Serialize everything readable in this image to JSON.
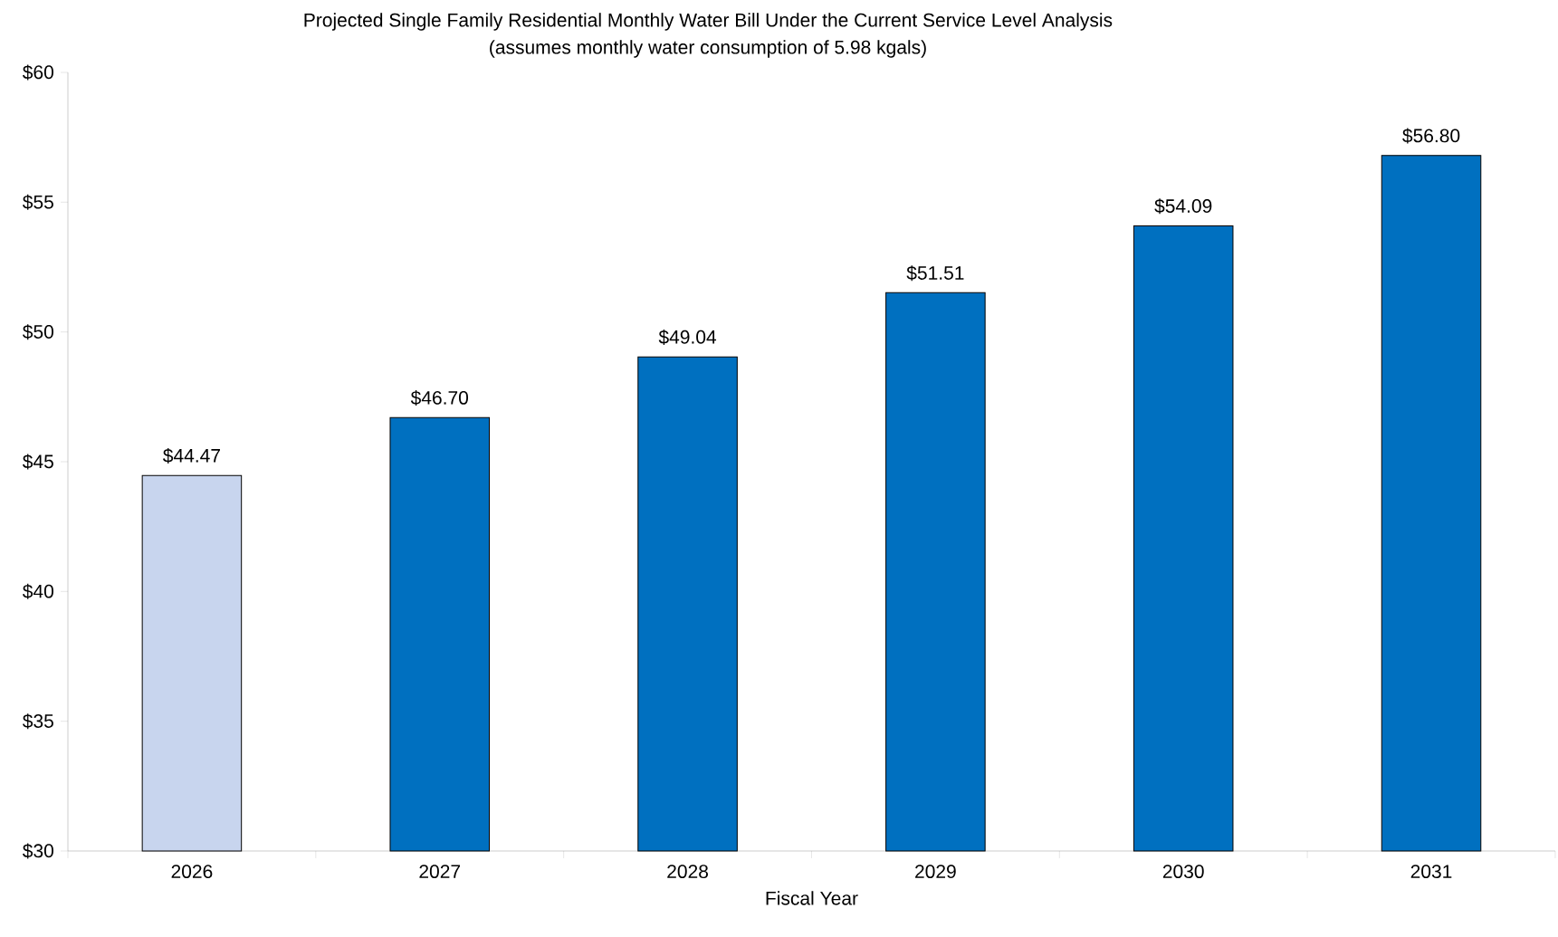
{
  "chart_data": {
    "type": "bar",
    "title": "Projected Single Family Residential Monthly Water Bill Under the Current Service Level Analysis",
    "subtitle": "(assumes monthly water consumption of  5.98 kgals)",
    "xlabel": "Fiscal Year",
    "categories": [
      "2026",
      "2027",
      "2028",
      "2029",
      "2030",
      "2031"
    ],
    "values": [
      44.47,
      46.7,
      49.04,
      51.51,
      54.09,
      56.8
    ],
    "value_labels": [
      "$44.47",
      "$46.70",
      "$49.04",
      "$51.51",
      "$54.09",
      "$56.80"
    ],
    "colors": [
      "#c8d5ee",
      "#0070c0",
      "#0070c0",
      "#0070c0",
      "#0070c0",
      "#0070c0"
    ],
    "ylim": [
      30,
      60
    ],
    "yticks": [
      {
        "value": 30,
        "label": "$30"
      },
      {
        "value": 35,
        "label": "$35"
      },
      {
        "value": 40,
        "label": "$40"
      },
      {
        "value": 45,
        "label": "$45"
      },
      {
        "value": 50,
        "label": "$50"
      },
      {
        "value": 55,
        "label": "$55"
      },
      {
        "value": 60,
        "label": "$60"
      }
    ],
    "grid": false
  }
}
